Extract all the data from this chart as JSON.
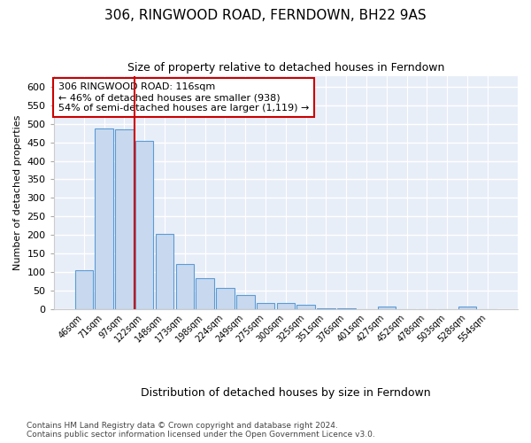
{
  "title": "306, RINGWOOD ROAD, FERNDOWN, BH22 9AS",
  "subtitle": "Size of property relative to detached houses in Ferndown",
  "xlabel_bottom": "Distribution of detached houses by size in Ferndown",
  "ylabel": "Number of detached properties",
  "categories": [
    "46sqm",
    "71sqm",
    "97sqm",
    "122sqm",
    "148sqm",
    "173sqm",
    "198sqm",
    "224sqm",
    "249sqm",
    "275sqm",
    "300sqm",
    "325sqm",
    "351sqm",
    "376sqm",
    "401sqm",
    "427sqm",
    "452sqm",
    "478sqm",
    "503sqm",
    "528sqm",
    "554sqm"
  ],
  "values": [
    105,
    487,
    485,
    453,
    202,
    120,
    83,
    57,
    37,
    15,
    15,
    10,
    2,
    2,
    0,
    5,
    0,
    0,
    0,
    7,
    0
  ],
  "bar_color": "#c8d9ef",
  "bar_edge_color": "#5b9bd5",
  "vline_x_index": 3.0,
  "vline_color": "#cc0000",
  "annotation_text": "306 RINGWOOD ROAD: 116sqm\n← 46% of detached houses are smaller (938)\n54% of semi-detached houses are larger (1,119) →",
  "annotation_box_color": "#cc0000",
  "background_color": "#e8eef8",
  "plot_bg_color": "#e8eef8",
  "grid_color": "#ffffff",
  "footnote": "Contains HM Land Registry data © Crown copyright and database right 2024.\nContains public sector information licensed under the Open Government Licence v3.0.",
  "ylim": [
    0,
    630
  ],
  "yticks": [
    0,
    50,
    100,
    150,
    200,
    250,
    300,
    350,
    400,
    450,
    500,
    550,
    600
  ],
  "figsize": [
    6.0,
    5.0
  ],
  "dpi": 100
}
